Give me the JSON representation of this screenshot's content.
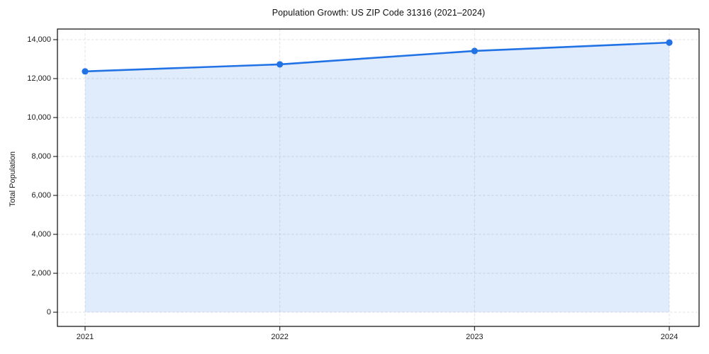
{
  "chart_data": {
    "type": "area",
    "title": "Population Growth: US ZIP Code 31316 (2021–2024)",
    "xlabel": "",
    "ylabel": "Total Population",
    "categories": [
      "2021",
      "2022",
      "2023",
      "2024"
    ],
    "series": [
      {
        "name": "Total Population",
        "values": [
          12370,
          12730,
          13420,
          13850
        ]
      }
    ],
    "ylim": [
      0,
      14550
    ],
    "yticks": [
      0,
      2000,
      4000,
      6000,
      8000,
      10000,
      12000,
      14000
    ],
    "ytick_labels": [
      "0",
      "2,000",
      "4,000",
      "6,000",
      "8,000",
      "10,000",
      "12,000",
      "14,000"
    ],
    "grid": true,
    "grid_style": "dashed",
    "legend": "none",
    "colors": {
      "line": "#2172e5",
      "marker": "#2172e5",
      "fill": "rgba(33,114,229,0.14)",
      "grid": "#e1e1e1",
      "spine": "#1a1a1a",
      "text": "#1a1a1a",
      "background": "#ffffff"
    }
  }
}
